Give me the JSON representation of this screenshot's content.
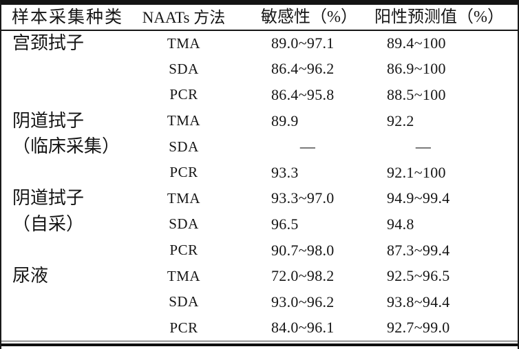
{
  "colors": {
    "background": "#ffffff",
    "text": "#151515",
    "rule": "#141414"
  },
  "chart_data": {
    "type": "table",
    "columns": [
      "样本采集种类",
      "NAATs 方法",
      "敏感性（%）",
      "阳性预测值（%）"
    ],
    "rows": [
      [
        "宫颈拭子",
        "TMA",
        "89.0~97.1",
        "89.4~100"
      ],
      [
        "",
        "SDA",
        "86.4~96.2",
        "86.9~100"
      ],
      [
        "",
        "PCR",
        "86.4~95.8",
        "88.5~100"
      ],
      [
        "阴道拭子",
        "TMA",
        "89.9",
        "92.2"
      ],
      [
        "（临床采集）",
        "SDA",
        "—",
        "—"
      ],
      [
        "",
        "PCR",
        "93.3",
        "92.1~100"
      ],
      [
        "阴道拭子",
        "TMA",
        "93.3~97.0",
        "94.9~99.4"
      ],
      [
        "（自采）",
        "SDA",
        "96.5",
        "94.8"
      ],
      [
        "",
        "PCR",
        "90.7~98.0",
        "87.3~99.4"
      ],
      [
        "尿液",
        "TMA",
        "72.0~98.2",
        "92.5~96.5"
      ],
      [
        "",
        "SDA",
        "93.0~96.2",
        "93.8~94.4"
      ],
      [
        "",
        "PCR",
        "84.0~96.1",
        "92.7~99.0"
      ]
    ]
  }
}
